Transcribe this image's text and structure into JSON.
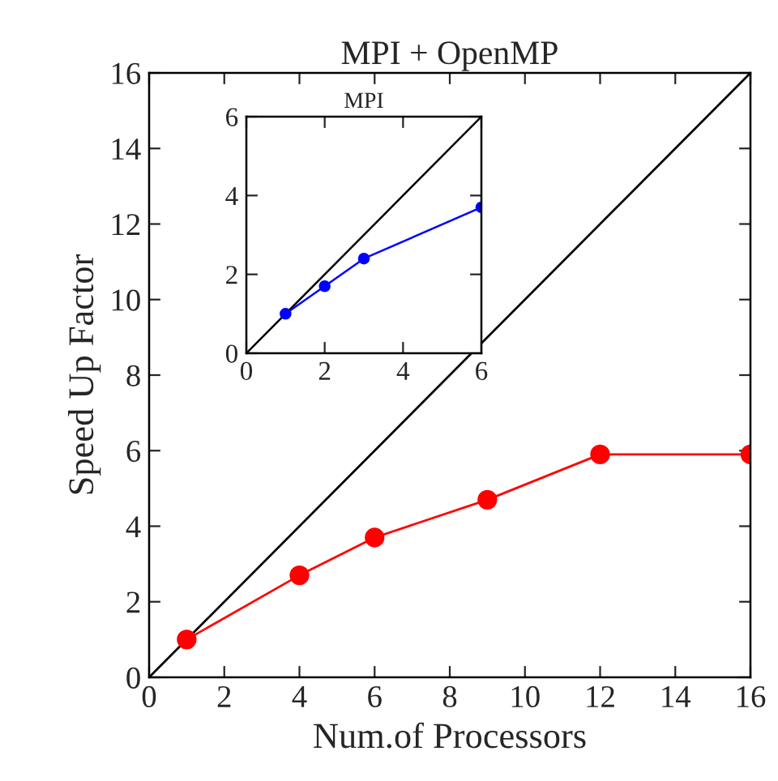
{
  "chart_data": [
    {
      "type": "line",
      "title": "MPI + OpenMP",
      "xlabel": "Num.of Processors",
      "ylabel": "Speed Up Factor",
      "xlim": [
        0,
        16
      ],
      "ylim": [
        0,
        16
      ],
      "xticks": [
        0,
        2,
        4,
        6,
        8,
        10,
        12,
        14,
        16
      ],
      "yticks": [
        0,
        2,
        4,
        6,
        8,
        10,
        12,
        14,
        16
      ],
      "grid": false,
      "legend": false,
      "series": [
        {
          "x": [
            0,
            16
          ],
          "values": [
            0,
            16
          ],
          "color": "#000000",
          "marker": "none"
        },
        {
          "x": [
            1,
            4,
            6,
            9,
            12,
            16
          ],
          "values": [
            1,
            2.7,
            3.7,
            4.7,
            5.9,
            5.9
          ],
          "color": "#ff0000",
          "marker": "circle"
        }
      ]
    },
    {
      "type": "line",
      "title": "MPI",
      "xlim": [
        0,
        6
      ],
      "ylim": [
        0,
        6
      ],
      "xticks": [
        0,
        2,
        4,
        6
      ],
      "yticks": [
        0,
        2,
        4,
        6
      ],
      "grid": false,
      "legend": false,
      "series": [
        {
          "x": [
            0,
            6
          ],
          "values": [
            0,
            6
          ],
          "color": "#000000",
          "marker": "none"
        },
        {
          "x": [
            1,
            2,
            3,
            6
          ],
          "values": [
            1.0,
            1.7,
            2.4,
            3.7
          ],
          "color": "#0000ff",
          "marker": "circle"
        }
      ]
    }
  ]
}
